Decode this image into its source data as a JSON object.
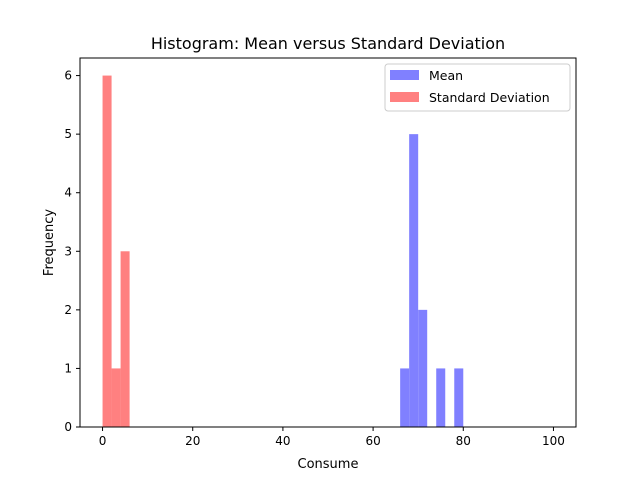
{
  "chart_data": {
    "type": "histogram",
    "title": "Histogram: Mean versus Standard Deviation",
    "xlabel": "Consume",
    "ylabel": "Frequency",
    "xlim": [
      -5,
      105
    ],
    "ylim": [
      0,
      6.3
    ],
    "xticks": [
      "0",
      "20",
      "40",
      "60",
      "80",
      "100"
    ],
    "yticks": [
      "0",
      "1",
      "2",
      "3",
      "4",
      "5",
      "6"
    ],
    "bin_width": 2,
    "series": [
      {
        "name": "Mean",
        "color": "#8080ff",
        "bins": [
          {
            "start": 66,
            "end": 68,
            "count": 1
          },
          {
            "start": 68,
            "end": 70,
            "count": 5
          },
          {
            "start": 70,
            "end": 72,
            "count": 2
          },
          {
            "start": 74,
            "end": 76,
            "count": 1
          },
          {
            "start": 78,
            "end": 80,
            "count": 1
          }
        ]
      },
      {
        "name": "Standard Deviation",
        "color": "#ff8080",
        "bins": [
          {
            "start": 0,
            "end": 2,
            "count": 6
          },
          {
            "start": 2,
            "end": 4,
            "count": 1
          },
          {
            "start": 4,
            "end": 6,
            "count": 3
          }
        ]
      }
    ],
    "legend": "top-right",
    "grid": false
  }
}
